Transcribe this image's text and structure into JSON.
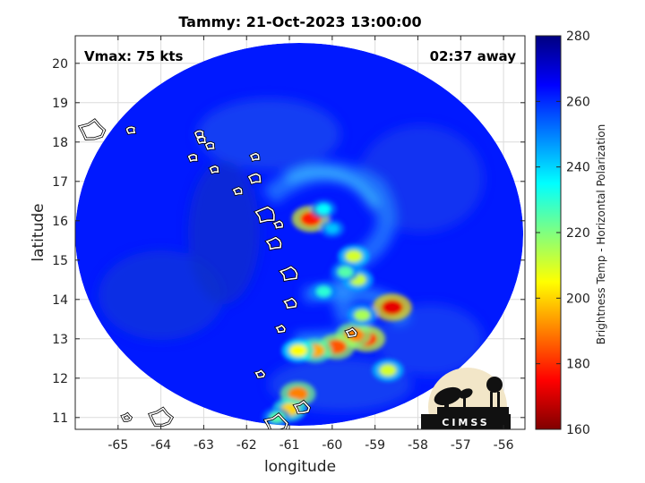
{
  "title": "Tammy: 21-Oct-2023 13:00:00",
  "annotations": {
    "vmax": "Vmax: 75 kts",
    "time_away": "02:37 away"
  },
  "logo": {
    "text": "CIMSS"
  },
  "chart_data": {
    "type": "heatmap",
    "title": "Tammy: 21-Oct-2023 13:00:00",
    "xlabel": "longitude",
    "ylabel": "latitude",
    "xlim": [
      -66,
      -55.5
    ],
    "ylim": [
      10.7,
      20.7
    ],
    "xticks": [
      -65,
      -64,
      -63,
      -62,
      -61,
      -60,
      -59,
      -58,
      -57,
      -56
    ],
    "yticks": [
      11,
      12,
      13,
      14,
      15,
      16,
      17,
      18,
      19,
      20
    ],
    "grid": true,
    "colorbar": {
      "label": "Brightness Temp - Horizontal Polarization",
      "range": [
        160,
        280
      ],
      "ticks": [
        160,
        180,
        200,
        220,
        240,
        260,
        280
      ],
      "colormap": "jet"
    },
    "swath": {
      "center_lon": -60.8,
      "center_lat": 15.6,
      "background_temp": 262
    },
    "features": [
      {
        "lon": -60.5,
        "lat": 16.05,
        "temp": 178
      },
      {
        "lon": -60.2,
        "lat": 16.3,
        "temp": 235
      },
      {
        "lon": -60.0,
        "lat": 15.8,
        "temp": 242
      },
      {
        "lon": -59.5,
        "lat": 15.1,
        "temp": 210
      },
      {
        "lon": -59.4,
        "lat": 14.5,
        "temp": 212
      },
      {
        "lon": -59.7,
        "lat": 14.7,
        "temp": 225
      },
      {
        "lon": -59.2,
        "lat": 13.0,
        "temp": 180
      },
      {
        "lon": -59.5,
        "lat": 13.1,
        "temp": 190
      },
      {
        "lon": -58.6,
        "lat": 13.8,
        "temp": 172
      },
      {
        "lon": -59.9,
        "lat": 12.8,
        "temp": 185
      },
      {
        "lon": -60.4,
        "lat": 12.7,
        "temp": 195
      },
      {
        "lon": -60.8,
        "lat": 12.7,
        "temp": 205
      },
      {
        "lon": -59.3,
        "lat": 13.6,
        "temp": 215
      },
      {
        "lon": -58.7,
        "lat": 12.2,
        "temp": 210
      },
      {
        "lon": -60.8,
        "lat": 11.6,
        "temp": 190
      },
      {
        "lon": -61.0,
        "lat": 11.2,
        "temp": 200
      },
      {
        "lon": -61.3,
        "lat": 11.0,
        "temp": 225
      },
      {
        "lon": -60.2,
        "lat": 14.2,
        "temp": 230
      }
    ],
    "coastlines": [
      {
        "name": "Virgin Islands",
        "lon": -64.7,
        "lat": 18.3
      },
      {
        "name": "Anguilla",
        "lon": -63.1,
        "lat": 18.2
      },
      {
        "name": "St Martin",
        "lon": -63.05,
        "lat": 18.05
      },
      {
        "name": "St Barthelemy",
        "lon": -62.85,
        "lat": 17.9
      },
      {
        "name": "Saba",
        "lon": -63.25,
        "lat": 17.6
      },
      {
        "name": "St Kitts",
        "lon": -62.75,
        "lat": 17.3
      },
      {
        "name": "Antigua",
        "lon": -61.8,
        "lat": 17.07
      },
      {
        "name": "Barbuda",
        "lon": -61.8,
        "lat": 17.62
      },
      {
        "name": "Montserrat",
        "lon": -62.2,
        "lat": 16.75
      },
      {
        "name": "Guadeloupe",
        "lon": -61.55,
        "lat": 16.15
      },
      {
        "name": "Marie-Galante",
        "lon": -61.25,
        "lat": 15.9
      },
      {
        "name": "Dominica",
        "lon": -61.35,
        "lat": 15.42
      },
      {
        "name": "Martinique",
        "lon": -61.0,
        "lat": 14.65
      },
      {
        "name": "St Lucia",
        "lon": -60.97,
        "lat": 13.9
      },
      {
        "name": "St Vincent",
        "lon": -61.2,
        "lat": 13.25
      },
      {
        "name": "Barbados",
        "lon": -59.55,
        "lat": 13.15
      },
      {
        "name": "Grenada",
        "lon": -61.68,
        "lat": 12.1
      },
      {
        "name": "Tobago",
        "lon": -60.7,
        "lat": 11.25
      },
      {
        "name": "Trinidad",
        "lon": -61.3,
        "lat": 10.85
      },
      {
        "name": "Puerto Rico",
        "lon": -65.6,
        "lat": 18.3
      },
      {
        "name": "Bonaire",
        "lon": -64.8,
        "lat": 11.0
      },
      {
        "name": "Margarita",
        "lon": -64.0,
        "lat": 11.0
      }
    ]
  }
}
